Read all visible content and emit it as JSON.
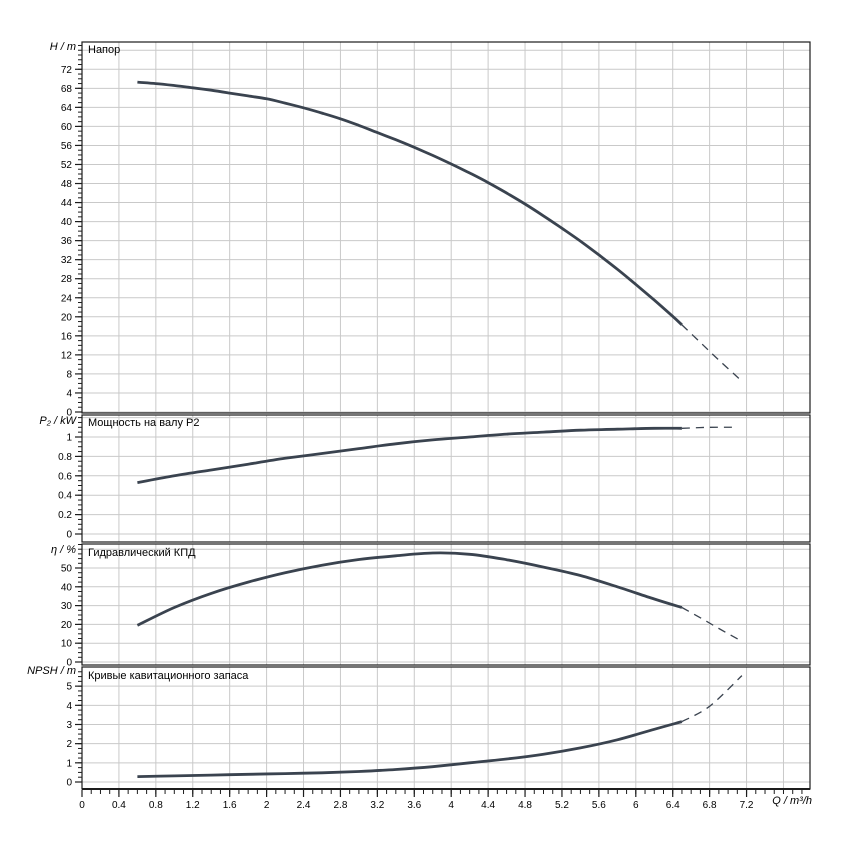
{
  "page": {
    "background": "#ffffff"
  },
  "colors": {
    "curve": "#3a434f",
    "grid": "#c9c9c9",
    "axis": "#1c1c1c",
    "text": "#000000"
  },
  "axis": {
    "x": {
      "label": "Q / m³/h",
      "min": 0,
      "max": 7.89,
      "major_step": 0.4,
      "minor_step": 0.1,
      "tick_labels": [
        "0",
        "0.4",
        "0.8",
        "1.2",
        "1.6",
        "2",
        "2.4",
        "2.8",
        "3.2",
        "3.6",
        "4",
        "4.4",
        "4.8",
        "5.2",
        "5.6",
        "6",
        "6.4",
        "6.8",
        "7.2"
      ]
    }
  },
  "chart_data": [
    {
      "type": "line",
      "title": "Напор",
      "ylabel": "H / m",
      "xlabel": "Q / m³/h",
      "ylim": [
        0,
        77.5
      ],
      "grid": true,
      "y_ticks": {
        "major_step": 4,
        "minor_step": 1,
        "labels": [
          "0",
          "4",
          "8",
          "12",
          "16",
          "20",
          "24",
          "28",
          "32",
          "36",
          "40",
          "44",
          "48",
          "52",
          "56",
          "60",
          "64",
          "68",
          "72"
        ]
      },
      "series": [
        {
          "name": "head-curve",
          "style": "solid",
          "points": [
            [
              0.6,
              69.3
            ],
            [
              0.8,
              69.0
            ],
            [
              1.0,
              68.6
            ],
            [
              1.2,
              68.1
            ],
            [
              1.4,
              67.6
            ],
            [
              1.6,
              67.0
            ],
            [
              1.8,
              66.4
            ],
            [
              2.0,
              65.8
            ],
            [
              2.2,
              64.9
            ],
            [
              2.4,
              63.9
            ],
            [
              2.6,
              62.8
            ],
            [
              2.8,
              61.6
            ],
            [
              3.0,
              60.2
            ],
            [
              3.2,
              58.7
            ],
            [
              3.4,
              57.2
            ],
            [
              3.6,
              55.6
            ],
            [
              3.8,
              53.9
            ],
            [
              4.0,
              52.1
            ],
            [
              4.2,
              50.2
            ],
            [
              4.4,
              48.2
            ],
            [
              4.6,
              46.0
            ],
            [
              4.8,
              43.7
            ],
            [
              5.0,
              41.2
            ],
            [
              5.2,
              38.6
            ],
            [
              5.4,
              35.9
            ],
            [
              5.6,
              33.0
            ],
            [
              5.8,
              30.0
            ],
            [
              6.0,
              26.8
            ],
            [
              6.2,
              23.5
            ],
            [
              6.4,
              20.1
            ],
            [
              6.5,
              18.3
            ]
          ]
        },
        {
          "name": "head-curve-extrapolated",
          "style": "dashed",
          "points": [
            [
              6.5,
              18.3
            ],
            [
              6.7,
              14.6
            ],
            [
              6.9,
              10.9
            ],
            [
              7.12,
              7.0
            ]
          ]
        }
      ]
    },
    {
      "type": "line",
      "title": "Мощность на валу P2",
      "ylabel": "P₂ / kW",
      "xlabel": "Q / m³/h",
      "ylim": [
        0,
        1.22
      ],
      "grid": true,
      "y_ticks": {
        "major_step": 0.2,
        "minor_step": 0.05,
        "labels": [
          "0",
          "0.2",
          "0.4",
          "0.6",
          "0.8",
          "1"
        ]
      },
      "series": [
        {
          "name": "shaft-power-curve",
          "style": "solid",
          "points": [
            [
              0.6,
              0.53
            ],
            [
              1.0,
              0.6
            ],
            [
              1.4,
              0.66
            ],
            [
              1.8,
              0.72
            ],
            [
              2.2,
              0.78
            ],
            [
              2.6,
              0.83
            ],
            [
              3.0,
              0.88
            ],
            [
              3.4,
              0.93
            ],
            [
              3.8,
              0.97
            ],
            [
              4.2,
              1.0
            ],
            [
              4.6,
              1.03
            ],
            [
              5.0,
              1.05
            ],
            [
              5.4,
              1.07
            ],
            [
              5.8,
              1.08
            ],
            [
              6.2,
              1.09
            ],
            [
              6.5,
              1.09
            ]
          ]
        },
        {
          "name": "shaft-power-curve-extrapolated",
          "style": "dashed",
          "points": [
            [
              6.5,
              1.09
            ],
            [
              6.8,
              1.1
            ],
            [
              7.1,
              1.1
            ]
          ]
        }
      ]
    },
    {
      "type": "line",
      "title": "Гидравлический КПД",
      "ylabel": "η / %",
      "xlabel": "Q / m³/h",
      "ylim": [
        0,
        62.5
      ],
      "grid": true,
      "y_ticks": {
        "major_step": 10,
        "minor_step": 2.5,
        "labels": [
          "0",
          "10",
          "20",
          "30",
          "40",
          "50"
        ]
      },
      "series": [
        {
          "name": "efficiency-curve",
          "style": "solid",
          "points": [
            [
              0.6,
              19.5
            ],
            [
              1.0,
              29.0
            ],
            [
              1.4,
              36.5
            ],
            [
              1.8,
              42.5
            ],
            [
              2.2,
              47.5
            ],
            [
              2.6,
              51.5
            ],
            [
              3.0,
              54.5
            ],
            [
              3.4,
              56.5
            ],
            [
              3.8,
              58.0
            ],
            [
              4.2,
              57.3
            ],
            [
              4.6,
              54.4
            ],
            [
              5.0,
              50.5
            ],
            [
              5.4,
              46.0
            ],
            [
              5.8,
              40.0
            ],
            [
              6.2,
              33.5
            ],
            [
              6.5,
              29.0
            ]
          ]
        },
        {
          "name": "efficiency-curve-extrapolated",
          "style": "dashed",
          "points": [
            [
              6.5,
              29.0
            ],
            [
              6.7,
              23.5
            ],
            [
              6.9,
              17.8
            ],
            [
              7.15,
              11.0
            ]
          ]
        }
      ]
    },
    {
      "type": "line",
      "title": "Кривые кавитационного запаса",
      "ylabel": "NPSH / m",
      "xlabel": "Q / m³/h",
      "ylim": [
        0,
        6
      ],
      "grid": true,
      "y_ticks": {
        "major_step": 1,
        "minor_step": 0.25,
        "labels": [
          "0",
          "1",
          "2",
          "3",
          "4",
          "5"
        ]
      },
      "series": [
        {
          "name": "npsh-curve",
          "style": "solid",
          "points": [
            [
              0.6,
              0.28
            ],
            [
              1.0,
              0.32
            ],
            [
              1.4,
              0.36
            ],
            [
              1.8,
              0.4
            ],
            [
              2.2,
              0.44
            ],
            [
              2.6,
              0.48
            ],
            [
              3.0,
              0.55
            ],
            [
              3.4,
              0.65
            ],
            [
              3.8,
              0.8
            ],
            [
              4.2,
              1.0
            ],
            [
              4.6,
              1.2
            ],
            [
              5.0,
              1.45
            ],
            [
              5.4,
              1.78
            ],
            [
              5.8,
              2.2
            ],
            [
              6.2,
              2.75
            ],
            [
              6.5,
              3.15
            ]
          ]
        },
        {
          "name": "npsh-curve-extrapolated",
          "style": "dashed",
          "points": [
            [
              6.5,
              3.15
            ],
            [
              6.8,
              3.95
            ],
            [
              7.15,
              5.55
            ]
          ]
        }
      ]
    }
  ]
}
